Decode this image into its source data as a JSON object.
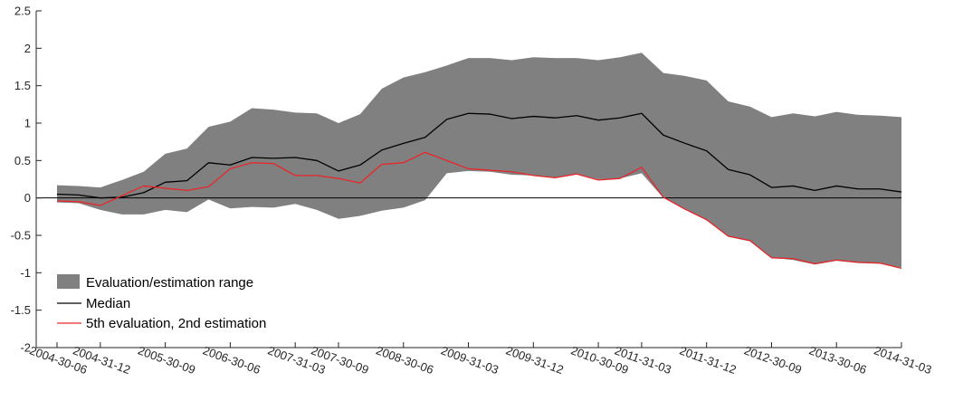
{
  "chart_data": {
    "type": "line",
    "title": "",
    "xlabel": "",
    "ylabel": "",
    "ylim": [
      -2,
      2.5
    ],
    "yticks": [
      -2,
      -1.5,
      -1,
      -0.5,
      0,
      0.5,
      1,
      1.5,
      2,
      2.5
    ],
    "ytick_labels": [
      "-2",
      "-1.5",
      "-1",
      "-0.5",
      "0",
      "0.5",
      "1",
      "1.5",
      "2",
      "2.5"
    ],
    "xtick_labels": [
      "2004-30-06",
      "2004-31-12",
      "2005-30-09",
      "2006-30-06",
      "2007-31-03",
      "2007-30-09",
      "2008-30-06",
      "2009-31-03",
      "2009-31-12",
      "2010-30-09",
      "2011-31-03",
      "2011-31-12",
      "2012-30-09",
      "2013-30-06",
      "2014-31-03"
    ],
    "xtick_positions": [
      0,
      2,
      5,
      8,
      11,
      13,
      16,
      19,
      22,
      25,
      27,
      30,
      33,
      36,
      39
    ],
    "x_count": 40,
    "grid": false,
    "legend_position": "bottom-left",
    "zero_line": true,
    "colors": {
      "band": "#808080",
      "median": "#000000",
      "eval": "#e8262a"
    },
    "series": [
      {
        "name": "Evaluation/estimation range",
        "kind": "band",
        "upper": [
          0.17,
          0.16,
          0.14,
          0.24,
          0.35,
          0.59,
          0.66,
          0.95,
          1.02,
          1.2,
          1.18,
          1.14,
          1.13,
          1.0,
          1.12,
          1.46,
          1.61,
          1.68,
          1.77,
          1.87,
          1.87,
          1.84,
          1.88,
          1.87,
          1.87,
          1.84,
          1.88,
          1.94,
          1.67,
          1.63,
          1.57,
          1.29,
          1.22,
          1.08,
          1.13,
          1.09,
          1.15,
          1.11,
          1.1,
          1.08
        ],
        "lower": [
          -0.06,
          -0.07,
          -0.16,
          -0.22,
          -0.22,
          -0.16,
          -0.19,
          -0.02,
          -0.14,
          -0.12,
          -0.13,
          -0.08,
          -0.16,
          -0.28,
          -0.24,
          -0.17,
          -0.13,
          -0.03,
          0.33,
          0.36,
          0.35,
          0.31,
          0.3,
          0.27,
          0.32,
          0.25,
          0.26,
          0.33,
          0.0,
          -0.15,
          -0.3,
          -0.52,
          -0.58,
          -0.8,
          -0.83,
          -0.89,
          -0.84,
          -0.87,
          -0.88,
          -0.93
        ]
      },
      {
        "name": "Median",
        "kind": "line",
        "values": [
          0.05,
          0.04,
          0.0,
          0.01,
          0.07,
          0.21,
          0.23,
          0.47,
          0.44,
          0.54,
          0.53,
          0.54,
          0.5,
          0.36,
          0.44,
          0.64,
          0.73,
          0.81,
          1.05,
          1.13,
          1.12,
          1.06,
          1.09,
          1.07,
          1.1,
          1.04,
          1.07,
          1.13,
          0.84,
          0.73,
          0.63,
          0.38,
          0.31,
          0.14,
          0.16,
          0.1,
          0.16,
          0.12,
          0.12,
          0.08
        ]
      },
      {
        "name": "5th evaluation, 2nd estimation",
        "kind": "line",
        "values": [
          -0.04,
          -0.05,
          -0.1,
          0.03,
          0.16,
          0.13,
          0.1,
          0.15,
          0.39,
          0.47,
          0.46,
          0.3,
          0.3,
          0.26,
          0.2,
          0.45,
          0.47,
          0.61,
          0.5,
          0.39,
          0.37,
          0.35,
          0.3,
          0.27,
          0.32,
          0.24,
          0.26,
          0.41,
          0.01,
          -0.15,
          -0.29,
          -0.51,
          -0.57,
          -0.8,
          -0.81,
          -0.88,
          -0.83,
          -0.86,
          -0.87,
          -0.94
        ]
      }
    ]
  }
}
